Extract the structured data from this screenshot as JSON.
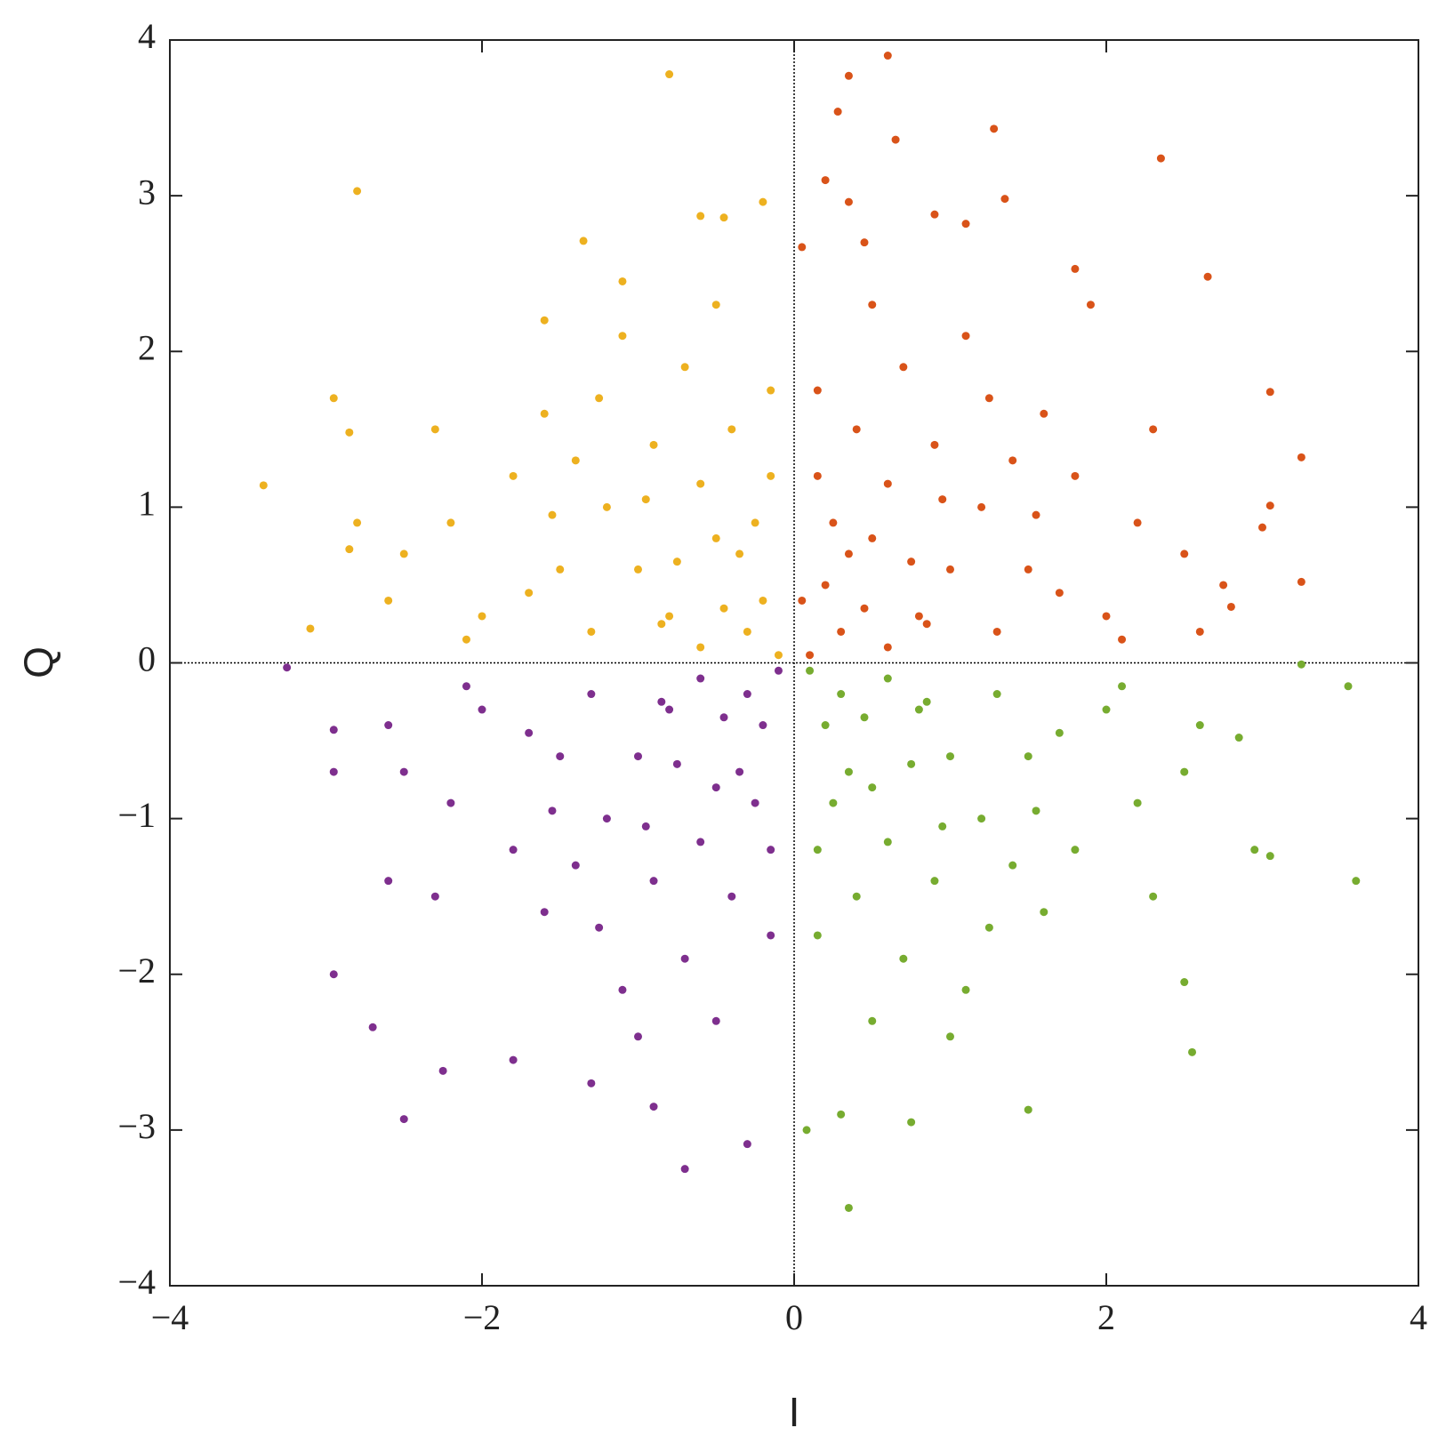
{
  "chart_data": {
    "type": "scatter",
    "x_label": "I",
    "y_label": "Q",
    "xlim": [
      -4,
      4
    ],
    "ylim": [
      -4,
      4
    ],
    "xticks": [
      {
        "value": -4,
        "label": "−4"
      },
      {
        "value": -2,
        "label": "−2"
      },
      0,
      2,
      4
    ],
    "yticks": [
      {
        "value": -4,
        "label": "−4"
      },
      {
        "value": -3,
        "label": "−3"
      },
      {
        "value": -2,
        "label": "−2"
      },
      {
        "value": -1,
        "label": "−1"
      },
      0,
      1,
      2,
      3,
      4
    ],
    "series": [
      {
        "color": "#d95319",
        "x": [
          0.6,
          0.35,
          0.28,
          1.28,
          0.65,
          2.35,
          0.2,
          1.35,
          0.35,
          0.45,
          2.65,
          3.05,
          3.25,
          3.05,
          3.0,
          3.25,
          2.8,
          2.75,
          1.9,
          1.8,
          1.1,
          0.9,
          0.05,
          0.2,
          0.5,
          0.8,
          1.2,
          0.4,
          1.5,
          0.9,
          0.3,
          0.6,
          1.0,
          1.8,
          2.2,
          1.6,
          0.7,
          0.15,
          1.3,
          2.0,
          2.5,
          1.1,
          0.5,
          0.25,
          0.75,
          1.4,
          2.3,
          0.1,
          0.45,
          0.95,
          1.7,
          0.35,
          0.6,
          1.25,
          2.1,
          0.15,
          0.85,
          1.55,
          0.05,
          2.6
        ],
        "values": [
          3.9,
          3.77,
          3.54,
          3.43,
          3.36,
          3.24,
          3.1,
          2.98,
          2.96,
          2.7,
          2.48,
          1.74,
          1.32,
          1.01,
          0.87,
          0.52,
          0.36,
          0.5,
          2.3,
          2.53,
          2.82,
          2.88,
          2.67,
          0.5,
          0.8,
          0.3,
          1.0,
          1.5,
          0.6,
          1.4,
          0.2,
          0.1,
          0.6,
          1.2,
          0.9,
          1.6,
          1.9,
          1.2,
          0.2,
          0.3,
          0.7,
          2.1,
          2.3,
          0.9,
          0.65,
          1.3,
          1.5,
          0.05,
          0.35,
          1.05,
          0.45,
          0.7,
          1.15,
          1.7,
          0.15,
          1.75,
          0.25,
          0.95,
          0.4,
          0.2
        ]
      },
      {
        "color": "#edb120",
        "x": [
          -0.8,
          -2.8,
          -0.2,
          -3.4,
          -3.1,
          -2.95,
          -2.85,
          -2.8,
          -2.85,
          -1.35,
          -0.45,
          -0.6,
          -1.1,
          -1.6,
          -0.2,
          -0.5,
          -0.8,
          -1.2,
          -0.4,
          -1.5,
          -0.9,
          -0.3,
          -0.6,
          -1.0,
          -1.8,
          -2.2,
          -1.6,
          -0.7,
          -0.15,
          -1.3,
          -2.0,
          -2.5,
          -1.1,
          -0.5,
          -0.25,
          -0.75,
          -1.4,
          -2.3,
          -0.1,
          -0.45,
          -0.95,
          -1.7,
          -0.35,
          -0.6,
          -1.25,
          -2.1,
          -0.15,
          -0.85,
          -1.55,
          -2.6
        ],
        "values": [
          3.78,
          3.03,
          2.96,
          1.14,
          0.22,
          1.7,
          1.48,
          0.9,
          0.73,
          2.71,
          2.86,
          2.87,
          2.45,
          2.2,
          0.4,
          0.8,
          0.3,
          1.0,
          1.5,
          0.6,
          1.4,
          0.2,
          0.1,
          0.6,
          1.2,
          0.9,
          1.6,
          1.9,
          1.2,
          0.2,
          0.3,
          0.7,
          2.1,
          2.3,
          0.9,
          0.65,
          1.3,
          1.5,
          0.05,
          0.35,
          1.05,
          0.45,
          0.7,
          1.15,
          1.7,
          0.15,
          1.75,
          0.25,
          0.95,
          0.4
        ]
      },
      {
        "color": "#7e2f8e",
        "x": [
          -3.25,
          -2.95,
          -2.95,
          -2.7,
          -2.5,
          -0.7,
          -0.3,
          -2.25,
          -1.8,
          -2.95,
          -2.6,
          -1.3,
          -0.9,
          -0.2,
          -0.5,
          -0.8,
          -1.2,
          -0.4,
          -1.5,
          -0.9,
          -0.3,
          -0.6,
          -1.0,
          -1.8,
          -2.2,
          -1.6,
          -0.7,
          -0.15,
          -1.3,
          -2.0,
          -2.5,
          -1.1,
          -0.5,
          -0.25,
          -0.75,
          -1.4,
          -2.3,
          -0.1,
          -0.45,
          -0.95,
          -1.7,
          -0.35,
          -0.6,
          -1.25,
          -2.1,
          -0.15,
          -0.85,
          -1.55,
          -2.6,
          -1.0
        ],
        "values": [
          -0.03,
          -0.43,
          -2.0,
          -2.34,
          -2.93,
          -3.25,
          -3.09,
          -2.62,
          -2.55,
          -0.7,
          -1.4,
          -2.7,
          -2.85,
          -0.4,
          -0.8,
          -0.3,
          -1.0,
          -1.5,
          -0.6,
          -1.4,
          -0.2,
          -0.1,
          -0.6,
          -1.2,
          -0.9,
          -1.6,
          -1.9,
          -1.2,
          -0.2,
          -0.3,
          -0.7,
          -2.1,
          -2.3,
          -0.9,
          -0.65,
          -1.3,
          -1.5,
          -0.05,
          -0.35,
          -1.05,
          -0.45,
          -0.7,
          -1.15,
          -1.7,
          -0.15,
          -1.75,
          -0.25,
          -0.95,
          -0.4,
          -2.4
        ]
      },
      {
        "color": "#77ac30",
        "x": [
          0.35,
          0.08,
          3.6,
          3.55,
          3.25,
          3.05,
          2.95,
          0.75,
          1.5,
          2.55,
          2.5,
          2.85,
          0.3,
          0.2,
          0.5,
          0.8,
          1.2,
          0.4,
          1.5,
          0.9,
          0.3,
          0.6,
          1.0,
          1.8,
          2.2,
          1.6,
          0.7,
          0.15,
          1.3,
          2.0,
          2.5,
          1.1,
          0.5,
          0.25,
          0.75,
          1.4,
          2.3,
          0.1,
          0.45,
          0.95,
          1.7,
          0.35,
          0.6,
          1.25,
          2.1,
          0.15,
          0.85,
          1.55,
          2.6,
          1.0
        ],
        "values": [
          -3.5,
          -3.0,
          -1.4,
          -0.15,
          -0.01,
          -1.24,
          -1.2,
          -2.95,
          -2.87,
          -2.5,
          -2.05,
          -0.48,
          -2.9,
          -0.4,
          -0.8,
          -0.3,
          -1.0,
          -1.5,
          -0.6,
          -1.4,
          -0.2,
          -0.1,
          -0.6,
          -1.2,
          -0.9,
          -1.6,
          -1.9,
          -1.2,
          -0.2,
          -0.3,
          -0.7,
          -2.1,
          -2.3,
          -0.9,
          -0.65,
          -1.3,
          -1.5,
          -0.05,
          -0.35,
          -1.05,
          -0.45,
          -0.7,
          -1.15,
          -1.7,
          -0.15,
          -1.75,
          -0.25,
          -0.95,
          -0.4,
          -2.4
        ]
      }
    ]
  }
}
